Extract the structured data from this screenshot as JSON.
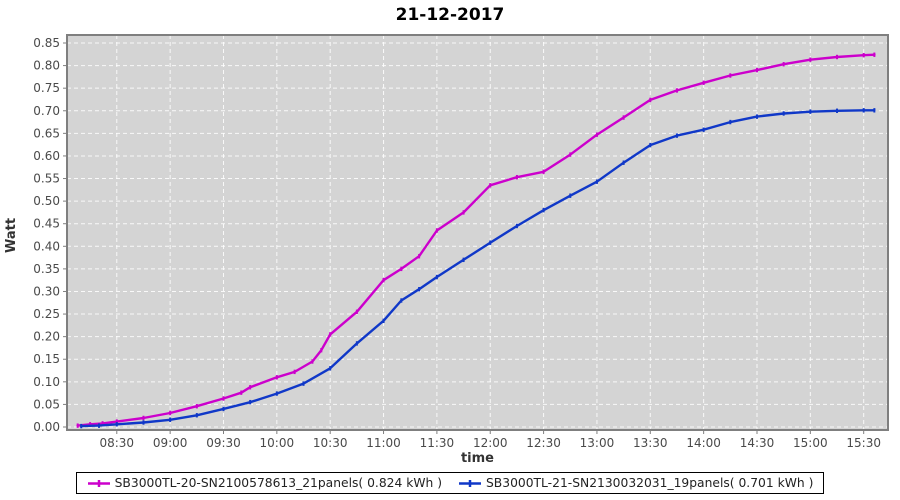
{
  "title": "21-12-2017",
  "x_axis": {
    "label": "time",
    "ticks": [
      "08:30",
      "09:00",
      "09:30",
      "10:00",
      "10:30",
      "11:00",
      "11:30",
      "12:00",
      "12:30",
      "13:00",
      "13:30",
      "14:00",
      "14:30",
      "15:00",
      "15:30"
    ]
  },
  "y_axis": {
    "label": "Watt",
    "ticks": [
      "0.00",
      "0.05",
      "0.10",
      "0.15",
      "0.20",
      "0.25",
      "0.30",
      "0.35",
      "0.40",
      "0.45",
      "0.50",
      "0.55",
      "0.60",
      "0.65",
      "0.70",
      "0.75",
      "0.80",
      "0.85"
    ]
  },
  "colors": {
    "plot_background": "#d4d4d4",
    "plot_border": "#7f7f7f",
    "gridline": "rgba(255,255,255,0.85)",
    "tick_label": "#4a4a4a",
    "series1": "#cc00cc",
    "series2": "#1038c8"
  },
  "chart_data": {
    "type": "line",
    "title": "21-12-2017",
    "xlabel": "time",
    "ylabel": "Watt",
    "x_range": [
      "08:02",
      "15:44"
    ],
    "ylim": [
      -0.006,
      0.868
    ],
    "y_tick_step": 0.05,
    "grid": "white dashed gridlines on gray background",
    "legend_position": "bottom",
    "series": [
      {
        "name": "SB3000TL-20-SN2100578613_21panels( 0.824 kWh )",
        "color": "#cc00cc",
        "final_kwh": 0.824,
        "points": [
          [
            "08:08",
            0.003
          ],
          [
            "08:15",
            0.006
          ],
          [
            "08:22",
            0.008
          ],
          [
            "08:30",
            0.012
          ],
          [
            "08:45",
            0.02
          ],
          [
            "09:00",
            0.031
          ],
          [
            "09:15",
            0.046
          ],
          [
            "09:30",
            0.063
          ],
          [
            "09:40",
            0.076
          ],
          [
            "09:45",
            0.088
          ],
          [
            "10:00",
            0.11
          ],
          [
            "10:10",
            0.122
          ],
          [
            "10:20",
            0.145
          ],
          [
            "10:25",
            0.17
          ],
          [
            "10:30",
            0.205
          ],
          [
            "10:45",
            0.255
          ],
          [
            "11:00",
            0.325
          ],
          [
            "11:10",
            0.35
          ],
          [
            "11:20",
            0.378
          ],
          [
            "11:30",
            0.435
          ],
          [
            "11:45",
            0.475
          ],
          [
            "12:00",
            0.535
          ],
          [
            "12:15",
            0.553
          ],
          [
            "12:30",
            0.565
          ],
          [
            "12:45",
            0.603
          ],
          [
            "13:00",
            0.647
          ],
          [
            "13:15",
            0.685
          ],
          [
            "13:30",
            0.724
          ],
          [
            "13:45",
            0.745
          ],
          [
            "14:00",
            0.762
          ],
          [
            "14:15",
            0.778
          ],
          [
            "14:30",
            0.79
          ],
          [
            "14:45",
            0.803
          ],
          [
            "15:00",
            0.813
          ],
          [
            "15:15",
            0.819
          ],
          [
            "15:30",
            0.823
          ],
          [
            "15:36",
            0.824
          ]
        ]
      },
      {
        "name": "SB3000TL-21-SN2130032031_19panels( 0.701 kWh )",
        "color": "#1038c8",
        "final_kwh": 0.701,
        "points": [
          [
            "08:10",
            0.002
          ],
          [
            "08:20",
            0.003
          ],
          [
            "08:30",
            0.006
          ],
          [
            "08:45",
            0.01
          ],
          [
            "09:00",
            0.016
          ],
          [
            "09:15",
            0.026
          ],
          [
            "09:30",
            0.04
          ],
          [
            "09:45",
            0.055
          ],
          [
            "10:00",
            0.074
          ],
          [
            "10:15",
            0.096
          ],
          [
            "10:30",
            0.13
          ],
          [
            "10:45",
            0.185
          ],
          [
            "11:00",
            0.235
          ],
          [
            "11:10",
            0.28
          ],
          [
            "11:20",
            0.305
          ],
          [
            "11:30",
            0.332
          ],
          [
            "11:45",
            0.37
          ],
          [
            "12:00",
            0.408
          ],
          [
            "12:15",
            0.445
          ],
          [
            "12:30",
            0.48
          ],
          [
            "12:45",
            0.512
          ],
          [
            "13:00",
            0.543
          ],
          [
            "13:15",
            0.585
          ],
          [
            "13:30",
            0.624
          ],
          [
            "13:45",
            0.645
          ],
          [
            "14:00",
            0.658
          ],
          [
            "14:15",
            0.675
          ],
          [
            "14:30",
            0.687
          ],
          [
            "14:45",
            0.694
          ],
          [
            "15:00",
            0.698
          ],
          [
            "15:15",
            0.7
          ],
          [
            "15:30",
            0.701
          ],
          [
            "15:36",
            0.701
          ]
        ]
      }
    ]
  }
}
